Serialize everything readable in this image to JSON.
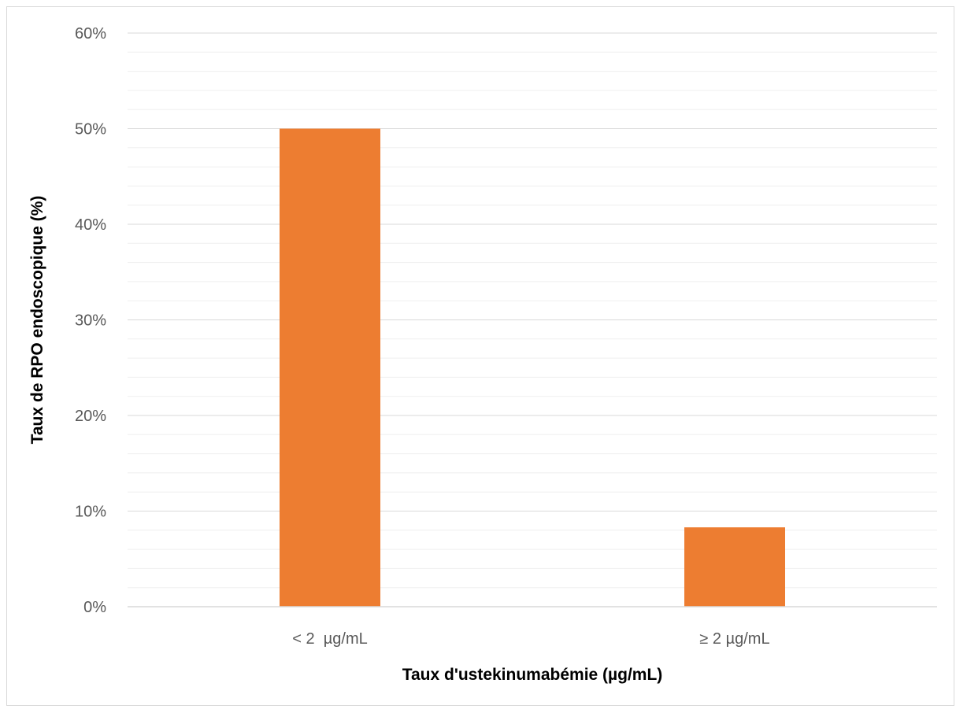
{
  "chart_data": {
    "type": "bar",
    "categories": [
      "< 2  µg/mL",
      "≥ 2 µg/mL"
    ],
    "series": [
      {
        "values": [
          50,
          8.3
        ],
        "color": "#ED7D31"
      }
    ],
    "xlabel": "Taux d'ustekinumabémie (µg/mL)",
    "ylabel": "Taux de RPO endoscopique (%)",
    "ylim": [
      0,
      60
    ],
    "yticks": [
      "0%",
      "10%",
      "20%",
      "30%",
      "40%",
      "50%",
      "60%"
    ],
    "grid": true,
    "legend": "none"
  }
}
